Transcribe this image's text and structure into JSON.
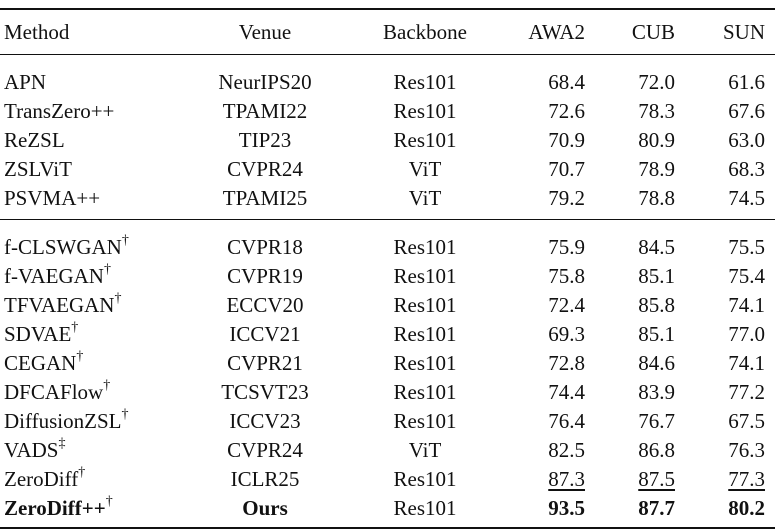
{
  "headers": {
    "method": "Method",
    "venue": "Venue",
    "backbone": "Backbone",
    "awa2": "AWA2",
    "cub": "CUB",
    "sun": "SUN"
  },
  "group1": [
    {
      "method": "APN",
      "sup": "",
      "venue": "NeurIPS20",
      "backbone": "Res101",
      "awa2": "68.4",
      "cub": "72.0",
      "sun": "61.6"
    },
    {
      "method": "TransZero++",
      "sup": "",
      "venue": "TPAMI22",
      "backbone": "Res101",
      "awa2": "72.6",
      "cub": "78.3",
      "sun": "67.6"
    },
    {
      "method": "ReZSL",
      "sup": "",
      "venue": "TIP23",
      "backbone": "Res101",
      "awa2": "70.9",
      "cub": "80.9",
      "sun": "63.0"
    },
    {
      "method": "ZSLViT",
      "sup": "",
      "venue": "CVPR24",
      "backbone": "ViT",
      "awa2": "70.7",
      "cub": "78.9",
      "sun": "68.3"
    },
    {
      "method": "PSVMA++",
      "sup": "",
      "venue": "TPAMI25",
      "backbone": "ViT",
      "awa2": "79.2",
      "cub": "78.8",
      "sun": "74.5"
    }
  ],
  "group2": [
    {
      "method": "f-CLSWGAN",
      "sup": "†",
      "venue": "CVPR18",
      "backbone": "Res101",
      "awa2": "75.9",
      "cub": "84.5",
      "sun": "75.5"
    },
    {
      "method": "f-VAEGAN",
      "sup": "†",
      "venue": "CVPR19",
      "backbone": "Res101",
      "awa2": "75.8",
      "cub": "85.1",
      "sun": "75.4"
    },
    {
      "method": "TFVAEGAN",
      "sup": "†",
      "venue": "ECCV20",
      "backbone": "Res101",
      "awa2": "72.4",
      "cub": "85.8",
      "sun": "74.1"
    },
    {
      "method": "SDVAE",
      "sup": "†",
      "venue": "ICCV21",
      "backbone": "Res101",
      "awa2": "69.3",
      "cub": "85.1",
      "sun": "77.0"
    },
    {
      "method": "CEGAN",
      "sup": "†",
      "venue": "CVPR21",
      "backbone": "Res101",
      "awa2": "72.8",
      "cub": "84.6",
      "sun": "74.1"
    },
    {
      "method": "DFCAFlow",
      "sup": "†",
      "venue": "TCSVT23",
      "backbone": "Res101",
      "awa2": "74.4",
      "cub": "83.9",
      "sun": "77.2"
    },
    {
      "method": "DiffusionZSL",
      "sup": "†",
      "venue": "ICCV23",
      "backbone": "Res101",
      "awa2": "76.4",
      "cub": "76.7",
      "sun": "67.5"
    },
    {
      "method": "VADS",
      "sup": "‡",
      "venue": "CVPR24",
      "backbone": "ViT",
      "awa2": "82.5",
      "cub": "86.8",
      "sun": "76.3"
    },
    {
      "method": "ZeroDiff",
      "sup": "†",
      "venue": "ICLR25",
      "backbone": "Res101",
      "awa2": "87.3",
      "cub": "87.5",
      "sun": "77.3",
      "style": "underline"
    },
    {
      "method": "ZeroDiff++",
      "sup": "†",
      "venue": "Ours",
      "backbone": "Res101",
      "awa2": "93.5",
      "cub": "87.7",
      "sun": "80.2",
      "style": "bold"
    }
  ]
}
